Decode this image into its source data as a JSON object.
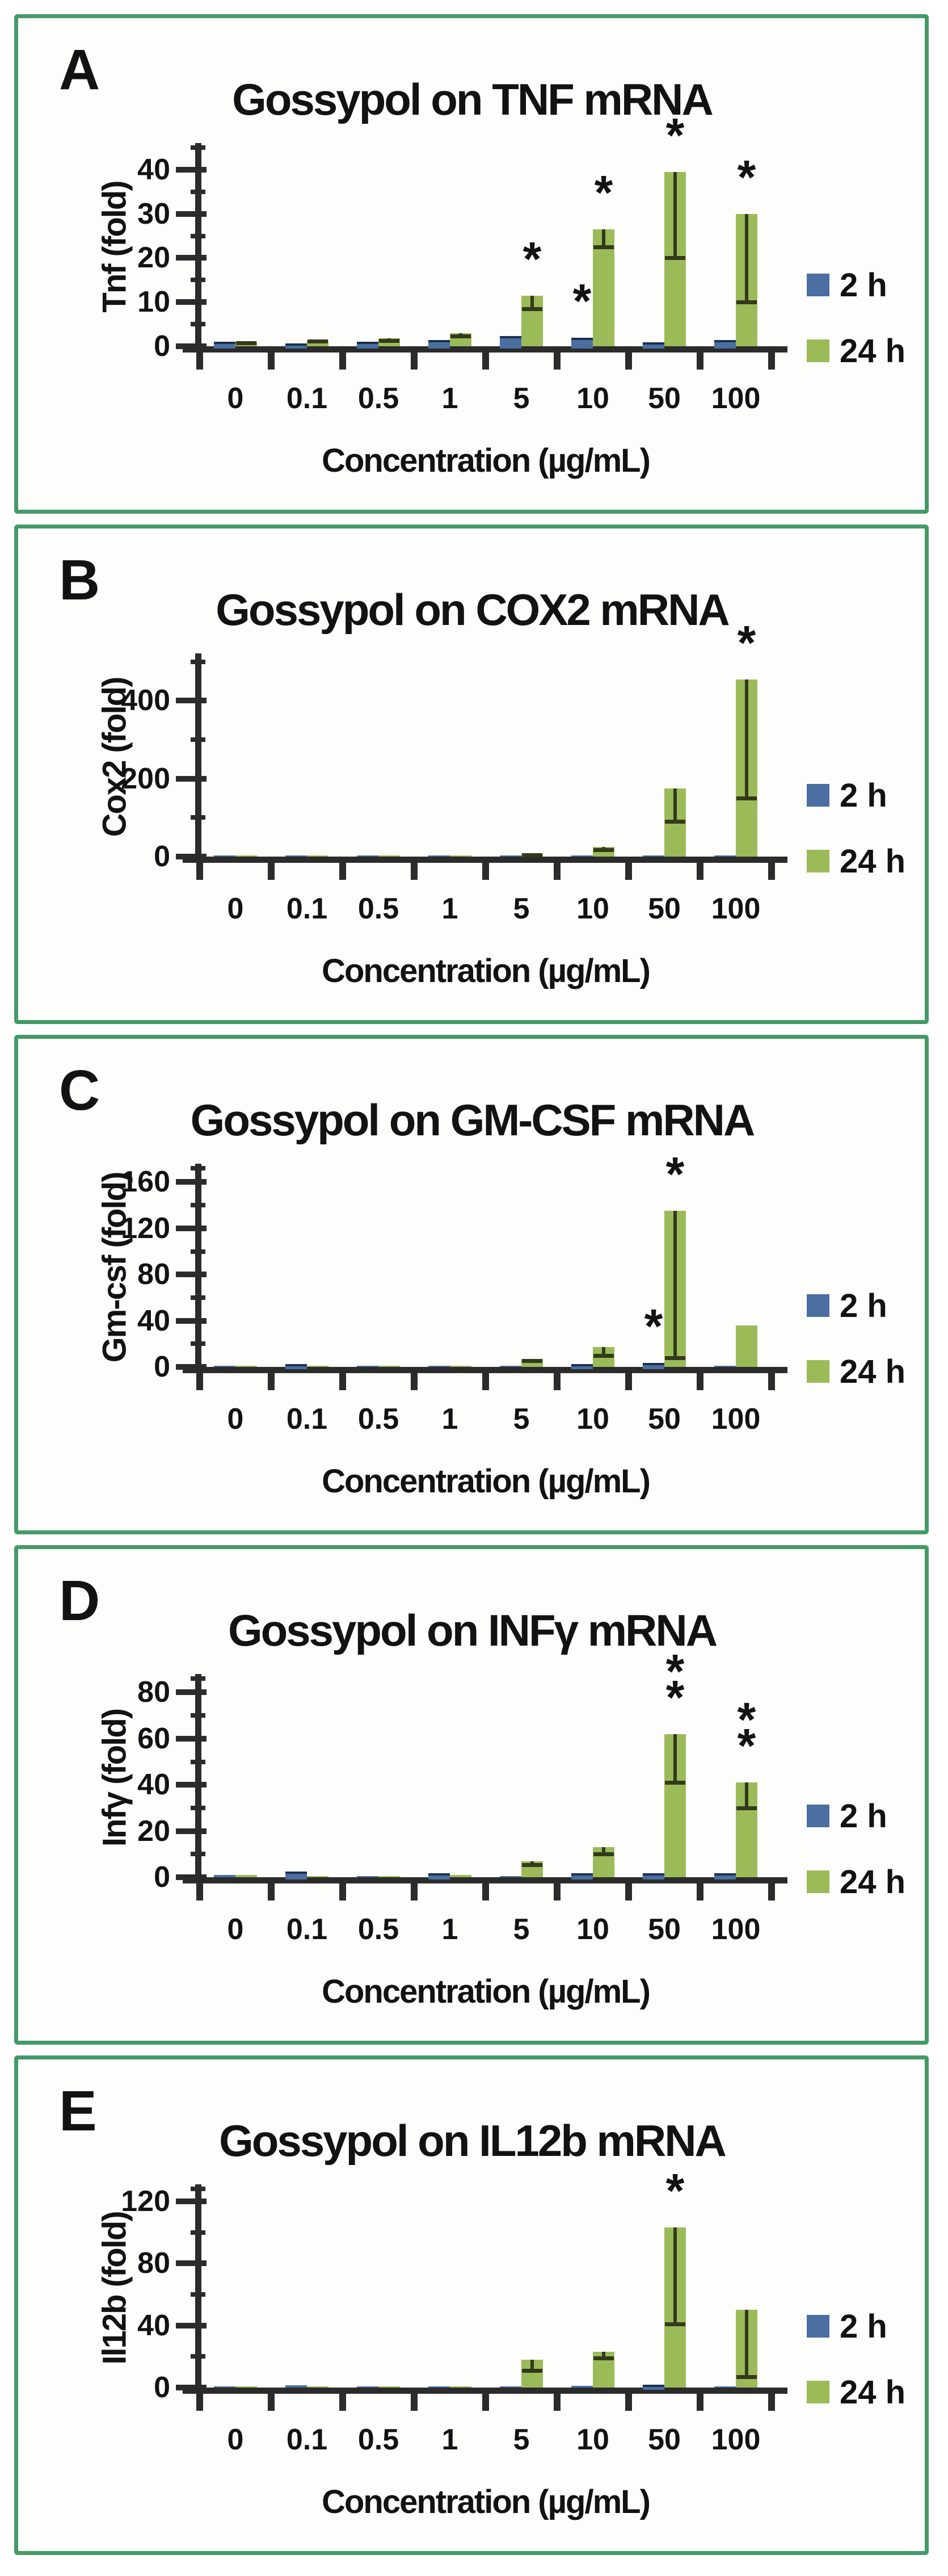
{
  "colors": {
    "panel_border": "#439a67",
    "bar_2h": "#4a6fa0",
    "bar_2h_cap": "#1c3050",
    "bar_24h": "#9bbb59",
    "error_bar": "#333a1b",
    "axis": "#2b2b2b",
    "text": "#121212"
  },
  "legend": {
    "labels": [
      "2 h",
      "24 h"
    ]
  },
  "chart_data": [
    {
      "type": "bar",
      "panel_letter": "A",
      "title": "Gossypol on TNF mRNA",
      "xlabel": "Concentration (µg/mL)",
      "ylabel": "Tnf (fold)",
      "categories": [
        "0",
        "0.1",
        "0.5",
        "1",
        "5",
        "10",
        "50",
        "100"
      ],
      "ylim": [
        0,
        40
      ],
      "ytick_labels": [
        "0",
        "10",
        "20",
        "30",
        "40"
      ],
      "ytick_step": 10,
      "yminor_step": 5,
      "yscale_top": 45,
      "top_cap_tick": false,
      "grid": false,
      "legend_position": "right",
      "series": [
        {
          "name": "2 h",
          "color": "blue",
          "values": [
            1.0,
            0.7,
            1.0,
            1.4,
            2.3,
            1.9,
            0.9,
            1.4
          ]
        },
        {
          "name": "24 h",
          "color": "green",
          "values": [
            1.0,
            1.3,
            1.8,
            2.9,
            11.5,
            26.5,
            39.5,
            30
          ],
          "errors_down": [
            0.2,
            0.2,
            0.5,
            0.6,
            3,
            4,
            19.5,
            20
          ]
        }
      ],
      "annotations": [
        {
          "category": "5",
          "series": "24 h",
          "text": "*"
        },
        {
          "category": "10",
          "series": "2 h",
          "text": "*"
        },
        {
          "category": "10",
          "series": "24 h",
          "text": "*"
        },
        {
          "category": "50",
          "series": "24 h",
          "text": "*"
        },
        {
          "category": "100",
          "series": "24 h",
          "text": "*"
        }
      ]
    },
    {
      "type": "bar",
      "panel_letter": "B",
      "title": "Gossypol on COX2 mRNA",
      "xlabel": "Concentration (µg/mL)",
      "ylabel": "Cox2 (fold)",
      "categories": [
        "0",
        "0.1",
        "0.5",
        "1",
        "5",
        "10",
        "50",
        "100"
      ],
      "ylim": [
        0,
        400
      ],
      "ytick_labels": [
        "0",
        "200",
        "400"
      ],
      "ytick_step": 200,
      "yminor_step": 100,
      "yscale_top": 510,
      "top_cap_tick": false,
      "grid": false,
      "legend_position": "right",
      "series": [
        {
          "name": "2 h",
          "color": "blue",
          "values": [
            1,
            1,
            1,
            1,
            2,
            2,
            2,
            2
          ]
        },
        {
          "name": "24 h",
          "color": "green",
          "values": [
            1,
            1,
            1,
            1,
            8,
            25,
            175,
            455
          ],
          "errors_down": [
            0,
            0,
            0,
            0,
            3,
            8,
            85,
            305
          ]
        }
      ],
      "annotations": [
        {
          "category": "100",
          "series": "24 h",
          "text": "*"
        }
      ]
    },
    {
      "type": "bar",
      "panel_letter": "C",
      "title": "Gossypol on GM-CSF mRNA",
      "xlabel": "Concentration (µg/mL)",
      "ylabel": "Gm-csf (fold)",
      "categories": [
        "0",
        "0.1",
        "0.5",
        "1",
        "5",
        "10",
        "50",
        "100"
      ],
      "ylim": [
        0,
        160
      ],
      "ytick_labels": [
        "0",
        "40",
        "80",
        "120",
        "160"
      ],
      "ytick_step": 40,
      "yminor_step": 20,
      "yscale_top": 172,
      "top_cap_tick": true,
      "grid": false,
      "legend_position": "right",
      "series": [
        {
          "name": "2 h",
          "color": "blue",
          "values": [
            0.5,
            2.5,
            0.5,
            0.5,
            1,
            2.5,
            3.5,
            0.5
          ]
        },
        {
          "name": "24 h",
          "color": "green",
          "values": [
            0.5,
            1,
            0.5,
            0.5,
            7,
            17,
            135,
            36
          ],
          "errors_down": [
            0,
            0,
            0,
            0,
            1.5,
            7,
            127,
            0
          ]
        }
      ],
      "annotations": [
        {
          "category": "50",
          "series": "2 h",
          "text": "*"
        },
        {
          "category": "50",
          "series": "24 h",
          "text": "*"
        }
      ]
    },
    {
      "type": "bar",
      "panel_letter": "D",
      "title": "Gossypol on INFγ mRNA",
      "xlabel": "Concentration (µg/mL)",
      "ylabel": "Infγ (fold)",
      "categories": [
        "0",
        "0.1",
        "0.5",
        "1",
        "5",
        "10",
        "50",
        "100"
      ],
      "ylim": [
        0,
        80
      ],
      "ytick_labels": [
        "0",
        "20",
        "40",
        "60",
        "80"
      ],
      "ytick_step": 20,
      "yminor_step": 10,
      "yscale_top": 86,
      "top_cap_tick": true,
      "grid": false,
      "legend_position": "right",
      "series": [
        {
          "name": "2 h",
          "color": "blue",
          "values": [
            1,
            2.5,
            0.4,
            1.6,
            0.4,
            1.6,
            1.6,
            1.6
          ]
        },
        {
          "name": "24 h",
          "color": "green",
          "values": [
            1,
            0.6,
            0.4,
            1,
            7,
            13,
            62,
            41
          ],
          "errors_down": [
            0,
            0,
            0,
            0,
            1.5,
            3,
            21,
            11
          ]
        }
      ],
      "annotations": [
        {
          "category": "50",
          "series": "24 h",
          "text": "**"
        },
        {
          "category": "100",
          "series": "24 h",
          "text": "**"
        }
      ]
    },
    {
      "type": "bar",
      "panel_letter": "E",
      "title": "Gossypol on IL12b mRNA",
      "xlabel": "Concentration (µg/mL)",
      "ylabel": "Il12b (fold)",
      "categories": [
        "0",
        "0.1",
        "0.5",
        "1",
        "5",
        "10",
        "50",
        "100"
      ],
      "ylim": [
        0,
        120
      ],
      "ytick_labels": [
        "0",
        "40",
        "80",
        "120"
      ],
      "ytick_step": 40,
      "yminor_step": 20,
      "yscale_top": 128,
      "top_cap_tick": true,
      "grid": false,
      "legend_position": "right",
      "series": [
        {
          "name": "2 h",
          "color": "blue",
          "values": [
            0.4,
            1.6,
            0.4,
            0.4,
            0.4,
            1,
            2,
            0.4
          ]
        },
        {
          "name": "24 h",
          "color": "green",
          "values": [
            0.4,
            0.6,
            0.4,
            0.4,
            18,
            23,
            103,
            50
          ],
          "errors_down": [
            0,
            0,
            0,
            0,
            7,
            4,
            62,
            43
          ]
        }
      ],
      "annotations": [
        {
          "category": "50",
          "series": "24 h",
          "text": "*"
        }
      ]
    }
  ]
}
